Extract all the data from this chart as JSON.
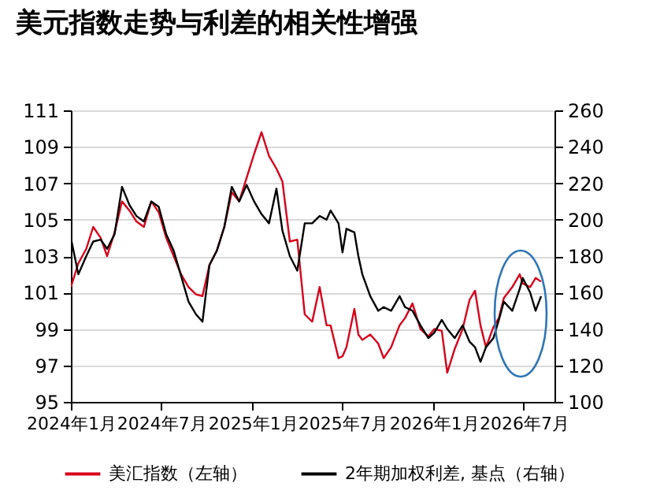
{
  "chart_data": {
    "type": "line",
    "title": "美元指数走势与利差的相关性增强",
    "x": [
      "2024-01-01",
      "2024-01-16",
      "2024-02-01",
      "2024-02-15",
      "2024-03-01",
      "2024-03-14",
      "2024-03-29",
      "2024-04-13",
      "2024-04-28",
      "2024-05-12",
      "2024-05-27",
      "2024-06-11",
      "2024-06-26",
      "2024-07-11",
      "2024-07-26",
      "2024-08-10",
      "2024-08-25",
      "2024-09-09",
      "2024-09-22",
      "2024-10-06",
      "2024-10-21",
      "2024-11-05",
      "2024-11-20",
      "2024-12-05",
      "2024-12-20",
      "2025-01-04",
      "2025-01-19",
      "2025-02-03",
      "2025-02-18",
      "2025-03-02",
      "2025-03-17",
      "2025-04-01",
      "2025-04-16",
      "2025-05-01",
      "2025-05-16",
      "2025-05-30",
      "2025-06-07",
      "2025-06-23",
      "2025-07-01",
      "2025-07-09",
      "2025-07-25",
      "2025-08-02",
      "2025-08-10",
      "2025-08-26",
      "2025-09-11",
      "2025-09-22",
      "2025-10-07",
      "2025-10-24",
      "2025-11-04",
      "2025-11-19",
      "2025-12-05",
      "2025-12-21",
      "2026-01-02",
      "2026-01-17",
      "2026-01-28",
      "2026-02-12",
      "2026-02-28",
      "2026-03-14",
      "2026-03-25",
      "2026-04-05",
      "2026-04-16",
      "2026-05-01",
      "2026-05-12",
      "2026-05-22",
      "2026-06-08",
      "2026-06-23",
      "2026-06-29",
      "2026-07-14",
      "2026-07-25",
      "2026-08-05"
    ],
    "series": [
      {
        "name": "美汇指数（左轴）",
        "color": "#d7001b",
        "values": [
          101.3,
          102.6,
          103.4,
          104.6,
          104.0,
          103.0,
          104.3,
          106.0,
          105.5,
          104.9,
          104.6,
          106.0,
          105.4,
          104.0,
          103.0,
          102.0,
          101.3,
          100.9,
          100.8,
          102.5,
          103.3,
          104.6,
          106.5,
          106.0,
          107.3,
          108.6,
          109.8,
          108.5,
          107.8,
          107.1,
          103.8,
          103.9,
          99.8,
          99.4,
          101.3,
          99.2,
          99.2,
          97.4,
          97.5,
          98.0,
          100.1,
          98.7,
          98.4,
          98.7,
          98.2,
          97.4,
          98.0,
          99.2,
          99.6,
          100.4,
          99.0,
          98.6,
          99.0,
          98.9,
          96.6,
          97.9,
          99.0,
          100.6,
          101.1,
          99.2,
          98.0,
          99.1,
          99.6,
          100.7,
          101.3,
          102.0,
          101.5,
          101.3,
          101.8,
          101.6
        ]
      },
      {
        "name": "2年期加权利差, 基点（右轴）",
        "color": "#000000",
        "axis": "y2",
        "values": [
          190,
          170,
          180,
          188,
          189,
          184,
          192,
          218,
          208,
          202,
          199,
          210,
          207,
          192,
          183,
          169,
          155,
          148,
          144,
          175,
          183,
          196,
          218,
          210,
          219,
          210,
          203,
          198,
          217,
          194,
          180,
          172,
          198,
          198,
          202,
          200,
          205,
          198,
          182,
          195,
          193,
          180,
          170,
          158,
          150,
          152,
          150,
          158,
          152,
          150,
          142,
          135,
          138,
          145,
          140,
          135,
          142,
          133,
          130,
          122,
          130,
          135,
          145,
          155,
          150,
          162,
          168,
          160,
          150,
          158
        ]
      }
    ],
    "xlim": [
      "2024-01-01",
      "2026-09-01"
    ],
    "xticks": [
      {
        "value": "2024-01-01",
        "label": "2024年1月"
      },
      {
        "value": "2024-07-01",
        "label": "2024年7月"
      },
      {
        "value": "2025-01-01",
        "label": "2025年1月"
      },
      {
        "value": "2025-07-01",
        "label": "2025年7月"
      },
      {
        "value": "2026-01-01",
        "label": "2026年1月"
      },
      {
        "value": "2026-07-01",
        "label": "2026年7月"
      }
    ],
    "ylim": [
      95,
      111
    ],
    "yticks": [
      95,
      97,
      99,
      101,
      103,
      105,
      107,
      109,
      111
    ],
    "y2lim": [
      100,
      260
    ],
    "y2ticks": [
      100,
      120,
      140,
      160,
      180,
      200,
      220,
      240,
      260
    ],
    "grid": "y",
    "legend": "bottom"
  }
}
